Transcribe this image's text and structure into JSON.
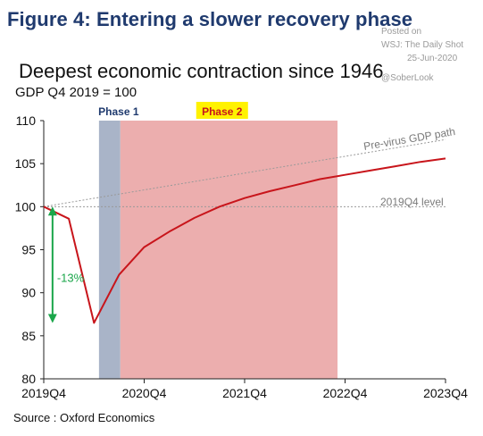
{
  "figure_title": "Figure 4: Entering a slower recovery phase",
  "watermark": {
    "posted_on": "Posted on",
    "source": "WSJ: The Daily Shot",
    "date": "25-Jun-2020",
    "handle": "@SoberLook"
  },
  "source_note": "Source : Oxford Economics",
  "colors": {
    "figure_title": "#1f3a6e",
    "gdp_line": "#c8151b",
    "phase1_band": "#a9b4c8",
    "phase2_band": "#ecaeae",
    "phase2_label_bg": "#fff200",
    "phase_label_text": "#1f3a6e",
    "phase2_label_text": "#c8151b",
    "arrow": "#1aa64a",
    "reference_lines": "#999999"
  },
  "chart_data": {
    "type": "line",
    "title": "Deepest economic contraction since 1946",
    "subtitle": "GDP Q4 2019 = 100",
    "xlabel": "",
    "ylabel": "",
    "x_tick_labels": [
      "2019Q4",
      "2020Q4",
      "2021Q4",
      "2022Q4",
      "2023Q4"
    ],
    "y_ticks": [
      80,
      85,
      90,
      95,
      100,
      105,
      110
    ],
    "xlim": [
      0,
      16
    ],
    "ylim": [
      80,
      110
    ],
    "grid": false,
    "series": [
      {
        "name": "",
        "x": [
          0,
          1,
          2,
          3,
          4,
          5,
          6,
          7,
          8,
          9,
          10,
          11,
          12,
          13,
          14,
          15,
          16
        ],
        "values": [
          100,
          98.6,
          86.5,
          92.1,
          95.3,
          97.1,
          98.7,
          100.0,
          101.0,
          101.8,
          102.5,
          103.2,
          103.7,
          104.2,
          104.7,
          105.2,
          105.6
        ]
      }
    ],
    "reference_lines": [
      {
        "label": "Pre-virus GDP path",
        "x": [
          0,
          16
        ],
        "values": [
          100,
          107.8
        ],
        "style": "dotted"
      },
      {
        "label": "2019Q4 level",
        "x": [
          0,
          16
        ],
        "values": [
          100,
          100
        ],
        "style": "dotted"
      }
    ],
    "shaded_regions": [
      {
        "label": "Phase 1",
        "x_start": 2.2,
        "x_end": 3.05
      },
      {
        "label": "Phase 2",
        "x_start": 3.05,
        "x_end": 11.7
      }
    ],
    "annotations": [
      {
        "text": "-13%",
        "x": 0.35,
        "y": 91.8,
        "arrow_from": 99.8,
        "arrow_to": 86.7
      }
    ]
  }
}
